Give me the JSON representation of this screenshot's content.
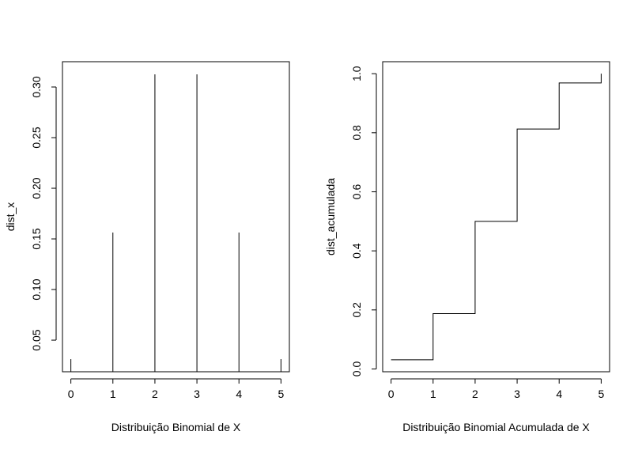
{
  "chart_data": [
    {
      "type": "bar",
      "style": "histogram-lines",
      "title": "",
      "xlabel": "Distribuição Binomial de X",
      "ylabel": "dist_x",
      "x": [
        0,
        1,
        2,
        3,
        4,
        5
      ],
      "values": [
        0.03125,
        0.15625,
        0.3125,
        0.3125,
        0.15625,
        0.03125
      ],
      "xlim": [
        -0.2,
        5.2
      ],
      "ylim": [
        0.0188,
        0.325
      ],
      "xticks": [
        0,
        1,
        2,
        3,
        4,
        5
      ],
      "xtick_labels": [
        "0",
        "1",
        "2",
        "3",
        "4",
        "5"
      ],
      "yticks": [
        0.05,
        0.1,
        0.15,
        0.2,
        0.25,
        0.3
      ],
      "ytick_labels": [
        "0.05",
        "0.10",
        "0.15",
        "0.20",
        "0.25",
        "0.30"
      ],
      "grid": false
    },
    {
      "type": "line",
      "style": "step",
      "title": "",
      "xlabel": "Distribuição Binomial Acumulada de X",
      "ylabel": "dist_acumulada",
      "x": [
        0,
        1,
        2,
        3,
        4,
        5
      ],
      "values": [
        0.03125,
        0.1875,
        0.5,
        0.8125,
        0.96875,
        1.0
      ],
      "xlim": [
        -0.2,
        5.2
      ],
      "ylim": [
        -0.0094,
        1.0406
      ],
      "xticks": [
        0,
        1,
        2,
        3,
        4,
        5
      ],
      "xtick_labels": [
        "0",
        "1",
        "2",
        "3",
        "4",
        "5"
      ],
      "yticks": [
        0.0,
        0.2,
        0.4,
        0.6,
        0.8,
        1.0
      ],
      "ytick_labels": [
        "0.0",
        "0.2",
        "0.4",
        "0.6",
        "0.8",
        "1.0"
      ],
      "grid": false
    }
  ]
}
